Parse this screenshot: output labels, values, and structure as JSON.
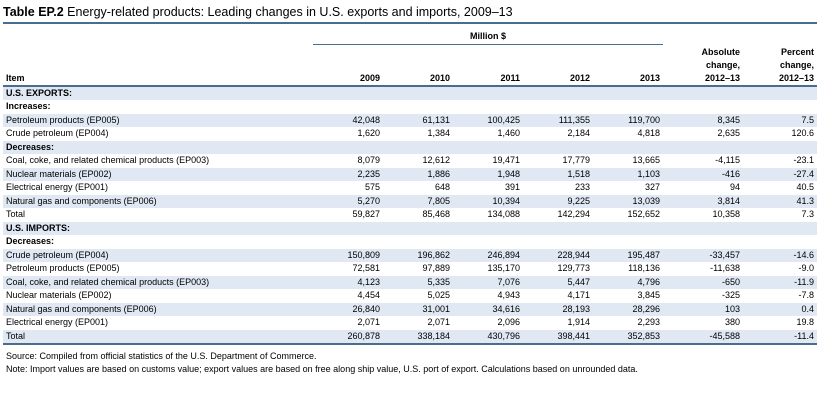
{
  "title": {
    "label": "Table EP.2",
    "text": "Energy-related products: Leading changes in U.S. exports and imports, 2009–13"
  },
  "header": {
    "million_label": "Million $",
    "item": "Item",
    "years": [
      "2009",
      "2010",
      "2011",
      "2012",
      "2013"
    ],
    "abs_change": [
      "Absolute",
      "change,",
      "2012–13"
    ],
    "pct_change": [
      "Percent",
      "change,",
      "2012–13"
    ]
  },
  "rows": [
    {
      "kind": "section",
      "item": "U.S. EXPORTS:"
    },
    {
      "kind": "sub",
      "item": "Increases:"
    },
    {
      "kind": "data",
      "item": "Petroleum products (EP005)",
      "values": [
        "42,048",
        "61,131",
        "100,425",
        "111,355",
        "119,700",
        "8,345",
        "7.5"
      ]
    },
    {
      "kind": "data",
      "item": "Crude petroleum (EP004)",
      "values": [
        "1,620",
        "1,384",
        "1,460",
        "2,184",
        "4,818",
        "2,635",
        "120.6"
      ]
    },
    {
      "kind": "sub",
      "item": "Decreases:"
    },
    {
      "kind": "data",
      "item": "Coal, coke, and related chemical products (EP003)",
      "values": [
        "8,079",
        "12,612",
        "19,471",
        "17,779",
        "13,665",
        "-4,115",
        "-23.1"
      ]
    },
    {
      "kind": "data",
      "item": "Nuclear materials (EP002)",
      "values": [
        "2,235",
        "1,886",
        "1,948",
        "1,518",
        "1,103",
        "-416",
        "-27.4"
      ]
    },
    {
      "kind": "data",
      "item": "Electrical energy (EP001)",
      "values": [
        "575",
        "648",
        "391",
        "233",
        "327",
        "94",
        "40.5"
      ]
    },
    {
      "kind": "data",
      "item": "Natural gas and components (EP006)",
      "values": [
        "5,270",
        "7,805",
        "10,394",
        "9,225",
        "13,039",
        "3,814",
        "41.3"
      ]
    },
    {
      "kind": "total",
      "item": "Total",
      "values": [
        "59,827",
        "85,468",
        "134,088",
        "142,294",
        "152,652",
        "10,358",
        "7.3"
      ]
    },
    {
      "kind": "section",
      "item": "U.S. IMPORTS:"
    },
    {
      "kind": "sub",
      "item": "Decreases:"
    },
    {
      "kind": "data",
      "item": "Crude petroleum (EP004)",
      "values": [
        "150,809",
        "196,862",
        "246,894",
        "228,944",
        "195,487",
        "-33,457",
        "-14.6"
      ]
    },
    {
      "kind": "data",
      "item": "Petroleum products (EP005)",
      "values": [
        "72,581",
        "97,889",
        "135,170",
        "129,773",
        "118,136",
        "-11,638",
        "-9.0"
      ]
    },
    {
      "kind": "data",
      "item": "Coal, coke, and related chemical products (EP003)",
      "values": [
        "4,123",
        "5,335",
        "7,076",
        "5,447",
        "4,796",
        "-650",
        "-11.9"
      ]
    },
    {
      "kind": "data",
      "item": "Nuclear materials (EP002)",
      "values": [
        "4,454",
        "5,025",
        "4,943",
        "4,171",
        "3,845",
        "-325",
        "-7.8"
      ]
    },
    {
      "kind": "data",
      "item": "Natural gas and components (EP006)",
      "values": [
        "26,840",
        "31,001",
        "34,616",
        "28,193",
        "28,296",
        "103",
        "0.4"
      ]
    },
    {
      "kind": "data",
      "item": "Electrical energy (EP001)",
      "values": [
        "2,071",
        "2,071",
        "2,096",
        "1,914",
        "2,293",
        "380",
        "19.8"
      ]
    },
    {
      "kind": "total",
      "item": "Total",
      "values": [
        "260,878",
        "338,184",
        "430,796",
        "398,441",
        "352,853",
        "-45,588",
        "-11.4"
      ]
    }
  ],
  "notes": {
    "source": "Source: Compiled from official statistics of the U.S. Department of Commerce.",
    "note": "Note: Import values are based on customs value; export values are based on free along ship value, U.S. port of export. Calculations based on unrounded data."
  },
  "colors": {
    "rule": "#4a6c8f",
    "band": "#dfe8f3"
  }
}
